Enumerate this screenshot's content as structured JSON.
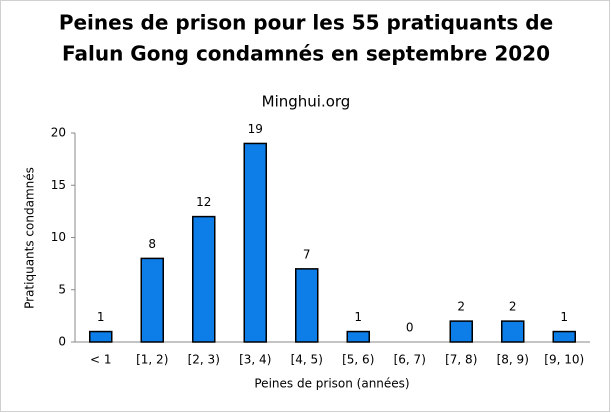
{
  "chart_data": {
    "type": "bar",
    "title": [
      "Peines de prison pour les 55 pratiquants de",
      "Falun Gong condamnés en septembre 2020"
    ],
    "subtitle": "Minghui.org",
    "x_label": "Peines de prison (années)",
    "y_label": "Pratiquants condamnés",
    "categories": [
      "< 1",
      "[1, 2)",
      "[2, 3)",
      "[3, 4)",
      "[4, 5)",
      "[5, 6)",
      "[6, 7)",
      "[7, 8)",
      "[8, 9)",
      "[9, 10)"
    ],
    "values": [
      1,
      8,
      12,
      19,
      7,
      1,
      0,
      2,
      2,
      1
    ],
    "color": "#0d7de8",
    "ylim": [
      0,
      20
    ],
    "yticks": [
      0,
      5,
      10,
      15,
      20
    ],
    "grid": false
  }
}
